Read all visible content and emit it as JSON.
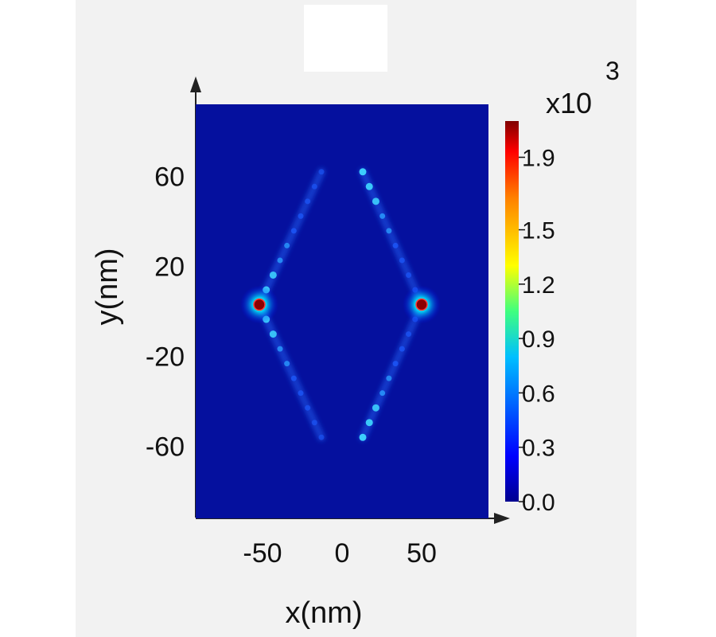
{
  "colors": {
    "panel_background": "#f2f2f2",
    "colormap": [
      "#00008f",
      "#0000ff",
      "#00ffff",
      "#ffff00",
      "#ff0000",
      "#800000"
    ]
  },
  "chart_data": {
    "type": "heatmap",
    "title": "",
    "xlabel": "x(nm)",
    "ylabel": "y(nm)",
    "xlim": [
      -92,
      92
    ],
    "ylim": [
      -92,
      92
    ],
    "x_ticks": [
      "-50",
      "0",
      "50"
    ],
    "x_tick_values": [
      -50,
      0,
      50
    ],
    "y_ticks": [
      "60",
      "20",
      "-20",
      "-60"
    ],
    "y_tick_values": [
      60,
      20,
      -20,
      -60
    ],
    "grid": false,
    "colorbar": {
      "multiplier": "x10",
      "exponent": "3",
      "range": [
        0.0,
        2.1
      ],
      "ticks": [
        "1.9",
        "1.5",
        "1.2",
        "0.9",
        "0.6",
        "0.3",
        "0.0"
      ],
      "tick_values": [
        1.9,
        1.5,
        1.2,
        0.9,
        0.6,
        0.3,
        0.0
      ]
    },
    "hotspots": [
      {
        "x": -52,
        "y": 3,
        "value": 2.1
      },
      {
        "x": 50,
        "y": 3,
        "value": 2.1
      }
    ],
    "edge_features": [
      {
        "from": [
          -52,
          3
        ],
        "to": [
          -13,
          62
        ],
        "value": 0.7
      },
      {
        "from": [
          13,
          62
        ],
        "to": [
          50,
          3
        ],
        "value": 0.7
      },
      {
        "from": [
          -52,
          3
        ],
        "to": [
          -13,
          -56
        ],
        "value": 0.6
      },
      {
        "from": [
          13,
          -56
        ],
        "to": [
          50,
          3
        ],
        "value": 0.6
      }
    ]
  }
}
